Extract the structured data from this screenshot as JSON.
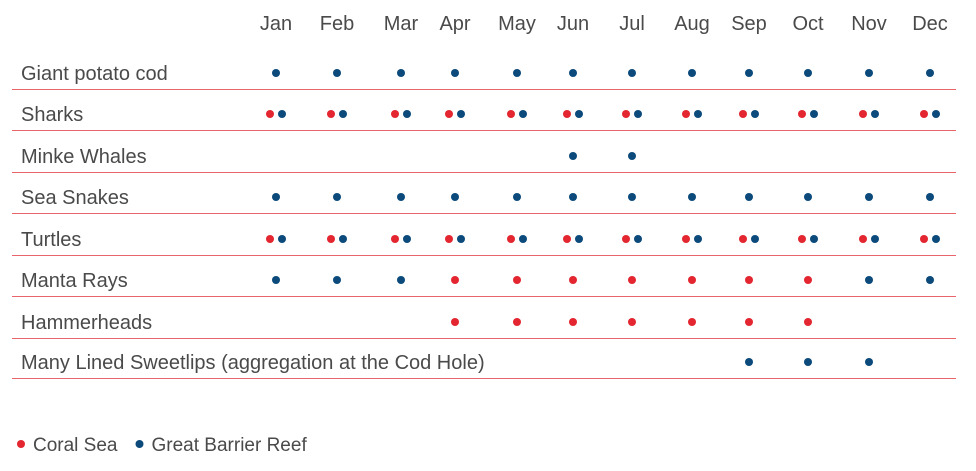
{
  "chart_data": {
    "type": "table",
    "months": [
      "Jan",
      "Feb",
      "Mar",
      "Apr",
      "May",
      "Jun",
      "Jul",
      "Aug",
      "Sep",
      "Oct",
      "Nov",
      "Dec"
    ],
    "legend": [
      {
        "key": "coral",
        "label": "Coral Sea",
        "color": "#e3262f"
      },
      {
        "key": "gbr",
        "label": "Great Barrier Reef",
        "color": "#0b4a7a"
      }
    ],
    "rows": [
      {
        "label": "Giant potato cod",
        "coral": [],
        "gbr": [
          1,
          2,
          3,
          4,
          5,
          6,
          7,
          8,
          9,
          10,
          11,
          12
        ]
      },
      {
        "label": "Sharks",
        "coral": [
          1,
          2,
          3,
          4,
          5,
          6,
          7,
          8,
          9,
          10,
          11,
          12
        ],
        "gbr": [
          1,
          2,
          3,
          4,
          5,
          6,
          7,
          8,
          9,
          10,
          11,
          12
        ]
      },
      {
        "label": "Minke Whales",
        "coral": [],
        "gbr": [
          6,
          7
        ]
      },
      {
        "label": "Sea Snakes",
        "coral": [],
        "gbr": [
          1,
          2,
          3,
          4,
          5,
          6,
          7,
          8,
          9,
          10,
          11,
          12
        ]
      },
      {
        "label": "Turtles",
        "coral": [
          1,
          2,
          3,
          4,
          5,
          6,
          7,
          8,
          9,
          10,
          11,
          12
        ],
        "gbr": [
          1,
          2,
          3,
          4,
          5,
          6,
          7,
          8,
          9,
          10,
          11,
          12
        ]
      },
      {
        "label": "Manta Rays",
        "coral": [
          4,
          5,
          6,
          7,
          8,
          9,
          10
        ],
        "gbr": [
          1,
          2,
          3,
          11,
          12
        ]
      },
      {
        "label": "Hammerheads",
        "coral": [
          4,
          5,
          6,
          7,
          8,
          9,
          10
        ],
        "gbr": []
      },
      {
        "label": "Many Lined Sweetlips (aggregation at the Cod Hole)",
        "coral": [],
        "gbr": [
          9,
          10,
          11
        ]
      }
    ],
    "divider_color": "#e8656b"
  }
}
